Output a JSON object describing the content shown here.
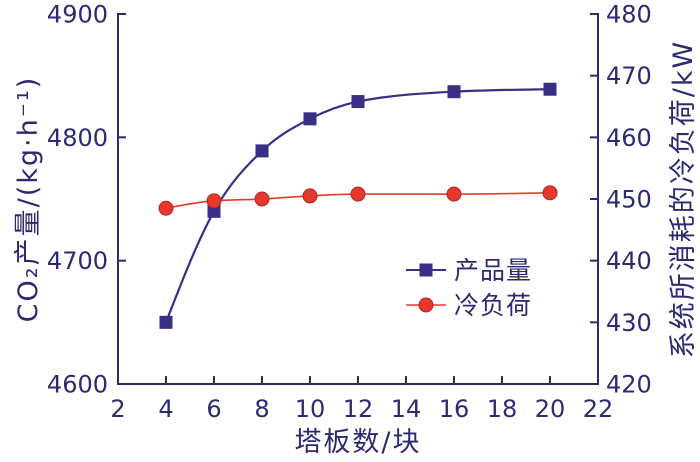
{
  "chart_data": {
    "type": "line",
    "xlabel": "塔板数/块",
    "ylabel": "CO₂产量/(kg·h⁻¹)",
    "y2label": "系统所消耗的冷负荷/kW",
    "xlim": [
      2,
      22
    ],
    "xticks": [
      2,
      4,
      6,
      8,
      10,
      12,
      14,
      16,
      18,
      20,
      22
    ],
    "ylim": [
      4600,
      4900
    ],
    "yticks": [
      4600,
      4700,
      4800,
      4900
    ],
    "y2lim": [
      420,
      480
    ],
    "y2ticks": [
      420,
      430,
      440,
      450,
      460,
      470,
      480
    ],
    "grid": false,
    "legend": "lower-right",
    "axis_color": "#2e2a72",
    "x": [
      4,
      6,
      8,
      10,
      12,
      16,
      20
    ],
    "series": [
      {
        "name": "产品量",
        "secondary_y": false,
        "marker": "square",
        "color": "#3a2f86",
        "values": [
          4650,
          4740,
          4789,
          4815,
          4829,
          4837,
          4839
        ]
      },
      {
        "name": "冷负荷",
        "secondary_y": true,
        "marker": "circle",
        "color": "#e5392d",
        "values": [
          448.5,
          449.7,
          450.0,
          450.5,
          450.8,
          450.8,
          451.0
        ]
      }
    ]
  }
}
